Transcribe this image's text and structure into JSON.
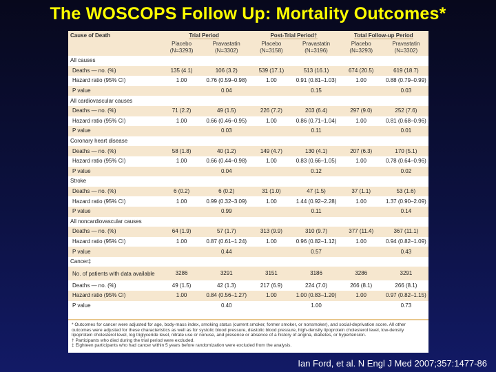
{
  "slide": {
    "title": "The WOSCOPS Follow Up: Mortality Outcomes*",
    "citation": "Ian Ford, et al. N Engl J Med 2007;357:1477-86"
  },
  "colors": {
    "title": "#ffff00",
    "header_tint": "#f6e7cf",
    "background": "#0c1140"
  },
  "table": {
    "first_header": "Cause of Death",
    "periods": [
      "Trial Period",
      "Post-Trial Period†",
      "Total Follow-up Period"
    ],
    "columns": [
      {
        "arm": "Placebo",
        "n": "(N=3293)"
      },
      {
        "arm": "Pravastatin",
        "n": "(N=3302)"
      },
      {
        "arm": "Placebo",
        "n": "(N=3158)"
      },
      {
        "arm": "Pravastatin",
        "n": "(N=3196)"
      },
      {
        "arm": "Placebo",
        "n": "(N=3293)"
      },
      {
        "arm": "Pravastatin",
        "n": "(N=3302)"
      }
    ],
    "rows": [
      {
        "kind": "section",
        "label": "All causes"
      },
      {
        "kind": "data",
        "tint": true,
        "label": "Deaths — no. (%)",
        "cells": [
          "135 (4.1)",
          "106 (3.2)",
          "539 (17.1)",
          "513 (16.1)",
          "674 (20.5)",
          "619 (18.7)"
        ]
      },
      {
        "kind": "data",
        "tint": false,
        "label": "Hazard ratio (95% CI)",
        "cells": [
          "1.00",
          "0.76 (0.59–0.98)",
          "1.00",
          "0.91 (0.81–1.03)",
          "1.00",
          "0.88 (0.79–0.99)"
        ]
      },
      {
        "kind": "data",
        "tint": true,
        "label": "P value",
        "cells": [
          "",
          "0.04",
          "",
          "0.15",
          "",
          "0.03"
        ]
      },
      {
        "kind": "section",
        "label": "All cardiovascular causes"
      },
      {
        "kind": "data",
        "tint": true,
        "label": "Deaths — no. (%)",
        "cells": [
          "71 (2.2)",
          "49 (1.5)",
          "226 (7.2)",
          "203 (6.4)",
          "297 (9.0)",
          "252 (7.6)"
        ]
      },
      {
        "kind": "data",
        "tint": false,
        "label": "Hazard ratio (95% CI)",
        "cells": [
          "1.00",
          "0.66 (0.46–0.95)",
          "1.00",
          "0.86 (0.71–1.04)",
          "1.00",
          "0.81 (0.68–0.96)"
        ]
      },
      {
        "kind": "data",
        "tint": true,
        "label": "P value",
        "cells": [
          "",
          "0.03",
          "",
          "0.11",
          "",
          "0.01"
        ]
      },
      {
        "kind": "section",
        "label": "Coronary heart disease"
      },
      {
        "kind": "data",
        "tint": true,
        "label": "Deaths — no. (%)",
        "cells": [
          "58 (1.8)",
          "40 (1.2)",
          "149 (4.7)",
          "130 (4.1)",
          "207 (6.3)",
          "170 (5.1)"
        ]
      },
      {
        "kind": "data",
        "tint": false,
        "label": "Hazard ratio (95% CI)",
        "cells": [
          "1.00",
          "0.66 (0.44–0.98)",
          "1.00",
          "0.83 (0.66–1.05)",
          "1.00",
          "0.78 (0.64–0.96)"
        ]
      },
      {
        "kind": "data",
        "tint": true,
        "label": "P value",
        "cells": [
          "",
          "0.04",
          "",
          "0.12",
          "",
          "0.02"
        ]
      },
      {
        "kind": "section",
        "label": "Stroke"
      },
      {
        "kind": "data",
        "tint": true,
        "label": "Deaths — no. (%)",
        "cells": [
          "6 (0.2)",
          "6 (0.2)",
          "31 (1.0)",
          "47 (1.5)",
          "37 (1.1)",
          "53 (1.6)"
        ]
      },
      {
        "kind": "data",
        "tint": false,
        "label": "Hazard ratio (95% CI)",
        "cells": [
          "1.00",
          "0.99 (0.32–3.09)",
          "1.00",
          "1.44 (0.92–2.28)",
          "1.00",
          "1.37 (0.90–2.09)"
        ]
      },
      {
        "kind": "data",
        "tint": true,
        "label": "P value",
        "cells": [
          "",
          "0.99",
          "",
          "0.11",
          "",
          "0.14"
        ]
      },
      {
        "kind": "section",
        "label": "All noncardiovascular causes"
      },
      {
        "kind": "data",
        "tint": true,
        "label": "Deaths — no. (%)",
        "cells": [
          "64 (1.9)",
          "57 (1.7)",
          "313 (9.9)",
          "310 (9.7)",
          "377 (11.4)",
          "367 (11.1)"
        ]
      },
      {
        "kind": "data",
        "tint": false,
        "label": "Hazard ratio (95% CI)",
        "cells": [
          "1.00",
          "0.87 (0.61–1.24)",
          "1.00",
          "0.96 (0.82–1.12)",
          "1.00",
          "0.94 (0.82–1.09)"
        ]
      },
      {
        "kind": "data",
        "tint": true,
        "label": "P value",
        "cells": [
          "",
          "0.44",
          "",
          "0.57",
          "",
          "0.43"
        ]
      },
      {
        "kind": "section",
        "label": "Cancer‡"
      },
      {
        "kind": "data",
        "tint": true,
        "tall": true,
        "label": "No. of patients with data available",
        "cells": [
          "3286",
          "3291",
          "3151",
          "3186",
          "3286",
          "3291"
        ]
      },
      {
        "kind": "data",
        "tint": false,
        "label": "Deaths — no. (%)",
        "cells": [
          "49 (1.5)",
          "42 (1.3)",
          "217 (6.9)",
          "224 (7.0)",
          "266 (8.1)",
          "266 (8.1)"
        ]
      },
      {
        "kind": "data",
        "tint": true,
        "label": "Hazard ratio (95% CI)",
        "cells": [
          "1.00",
          "0.84 (0.56–1.27)",
          "1.00",
          "1.00 (0.83–1.20)",
          "1.00",
          "0.97 (0.82–1.15)"
        ]
      },
      {
        "kind": "data",
        "tint": false,
        "label": "P value",
        "cells": [
          "",
          "0.40",
          "",
          "1.00",
          "",
          "0.73"
        ]
      }
    ]
  },
  "footnotes": [
    "* Outcomes for cancer were adjusted for age, body-mass index, smoking status (current smoker, former smoker, or nonsmoker), and social-deprivation score. All other outcomes were adjusted for these characteristics as well as for systolic blood pressure, diastolic blood pressure, high-density lipoprotein cholesterol level, low-density lipoprotein cholesterol level, log triglyceride level, nitrate use or nonuse, and presence or absence of a history of angina, diabetes, or hypertension.",
    "† Participants who died during the trial period were excluded.",
    "‡ Eighteen participants who had cancer within 5 years before randomization were excluded from the analysis."
  ]
}
